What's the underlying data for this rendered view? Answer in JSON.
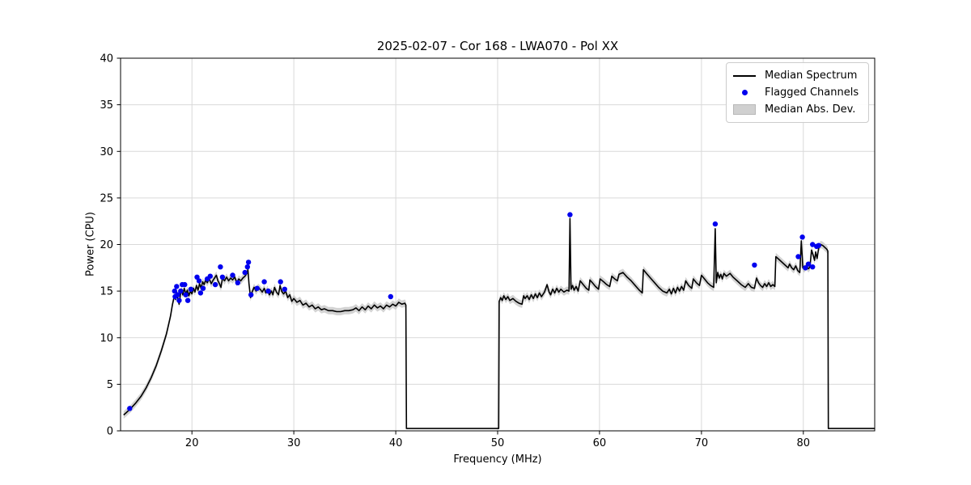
{
  "chart_data": {
    "type": "line",
    "title": "2025-02-07 - Cor 168 - LWA070 - Pol XX",
    "xlabel": "Frequency (MHz)",
    "ylabel": "Power (CPU)",
    "xlim": [
      13,
      87
    ],
    "ylim": [
      0,
      40
    ],
    "xticks": [
      20,
      30,
      40,
      50,
      60,
      70,
      80
    ],
    "yticks": [
      0,
      5,
      10,
      15,
      20,
      25,
      30,
      35,
      40
    ],
    "grid": true,
    "colors": {
      "line": "#000000",
      "flagged": "#0000ee",
      "band": "#c8c8c8",
      "grid": "#d9d9d9",
      "spine": "#000000"
    },
    "legend": {
      "position": "upper-right",
      "entries": [
        {
          "label": "Median Spectrum",
          "marker": "line"
        },
        {
          "label": "Flagged Channels",
          "marker": "dot"
        },
        {
          "label": "Median Abs. Dev.",
          "marker": "patch"
        }
      ]
    },
    "series": [
      {
        "name": "Median Spectrum",
        "type": "line",
        "points": [
          [
            13.3,
            1.7
          ],
          [
            13.6,
            2.0
          ],
          [
            14.0,
            2.4
          ],
          [
            14.5,
            3.0
          ],
          [
            15.0,
            3.7
          ],
          [
            15.5,
            4.6
          ],
          [
            16.0,
            5.7
          ],
          [
            16.5,
            7.0
          ],
          [
            17.0,
            8.6
          ],
          [
            17.5,
            10.4
          ],
          [
            17.9,
            12.3
          ],
          [
            18.1,
            13.6
          ],
          [
            18.3,
            14.6
          ],
          [
            18.4,
            14.1
          ],
          [
            18.5,
            14.9
          ],
          [
            18.6,
            14.3
          ],
          [
            18.75,
            13.6
          ],
          [
            18.9,
            14.8
          ],
          [
            19.0,
            15.2
          ],
          [
            19.1,
            14.6
          ],
          [
            19.25,
            15.3
          ],
          [
            19.4,
            14.7
          ],
          [
            19.55,
            15.1
          ],
          [
            19.7,
            14.5
          ],
          [
            19.85,
            15.0
          ],
          [
            20.0,
            14.7
          ],
          [
            20.15,
            15.3
          ],
          [
            20.3,
            14.9
          ],
          [
            20.45,
            15.6
          ],
          [
            20.6,
            15.1
          ],
          [
            20.75,
            15.8
          ],
          [
            20.9,
            15.3
          ],
          [
            21.05,
            16.0
          ],
          [
            21.2,
            15.7
          ],
          [
            21.35,
            16.2
          ],
          [
            21.5,
            15.9
          ],
          [
            21.7,
            16.3
          ],
          [
            21.9,
            15.8
          ],
          [
            22.1,
            16.2
          ],
          [
            22.4,
            16.7
          ],
          [
            22.55,
            16.1
          ],
          [
            22.7,
            15.8
          ],
          [
            22.85,
            15.4
          ],
          [
            23.0,
            16.4
          ],
          [
            23.2,
            16.1
          ],
          [
            23.4,
            16.5
          ],
          [
            23.6,
            16.1
          ],
          [
            23.8,
            16.4
          ],
          [
            24.0,
            16.2
          ],
          [
            24.2,
            16.5
          ],
          [
            24.4,
            15.9
          ],
          [
            24.6,
            16.3
          ],
          [
            24.8,
            16.1
          ],
          [
            25.0,
            16.4
          ],
          [
            25.2,
            16.6
          ],
          [
            25.4,
            16.9
          ],
          [
            25.5,
            17.3
          ],
          [
            25.6,
            15.8
          ],
          [
            25.75,
            14.3
          ],
          [
            25.9,
            14.9
          ],
          [
            26.1,
            15.4
          ],
          [
            26.3,
            15.0
          ],
          [
            26.5,
            15.4
          ],
          [
            26.7,
            15.2
          ],
          [
            26.9,
            14.9
          ],
          [
            27.1,
            15.3
          ],
          [
            27.25,
            14.8
          ],
          [
            27.4,
            15.2
          ],
          [
            27.6,
            14.6
          ],
          [
            27.8,
            15.0
          ],
          [
            27.95,
            14.6
          ],
          [
            28.1,
            15.4
          ],
          [
            28.3,
            14.9
          ],
          [
            28.5,
            14.6
          ],
          [
            28.65,
            15.6
          ],
          [
            28.8,
            15.0
          ],
          [
            29.0,
            14.7
          ],
          [
            29.2,
            15.0
          ],
          [
            29.4,
            14.3
          ],
          [
            29.6,
            14.6
          ],
          [
            29.8,
            13.9
          ],
          [
            30.0,
            14.2
          ],
          [
            30.3,
            13.8
          ],
          [
            30.6,
            14.0
          ],
          [
            30.9,
            13.5
          ],
          [
            31.2,
            13.7
          ],
          [
            31.5,
            13.3
          ],
          [
            31.8,
            13.5
          ],
          [
            32.1,
            13.1
          ],
          [
            32.4,
            13.3
          ],
          [
            32.7,
            13.0
          ],
          [
            33.0,
            13.1
          ],
          [
            33.4,
            12.9
          ],
          [
            33.8,
            12.9
          ],
          [
            34.2,
            12.8
          ],
          [
            34.6,
            12.8
          ],
          [
            35.0,
            12.9
          ],
          [
            35.4,
            12.9
          ],
          [
            35.8,
            13.0
          ],
          [
            36.1,
            13.2
          ],
          [
            36.4,
            12.9
          ],
          [
            36.7,
            13.3
          ],
          [
            37.0,
            13.0
          ],
          [
            37.3,
            13.4
          ],
          [
            37.6,
            13.1
          ],
          [
            37.9,
            13.5
          ],
          [
            38.2,
            13.2
          ],
          [
            38.5,
            13.4
          ],
          [
            38.8,
            13.1
          ],
          [
            39.1,
            13.5
          ],
          [
            39.4,
            13.3
          ],
          [
            39.7,
            13.6
          ],
          [
            40.0,
            13.4
          ],
          [
            40.3,
            13.8
          ],
          [
            40.6,
            13.6
          ],
          [
            40.9,
            13.7
          ],
          [
            41.0,
            13.5
          ],
          [
            41.05,
            0.25
          ],
          [
            50.1,
            0.25
          ],
          [
            50.15,
            13.9
          ],
          [
            50.3,
            14.3
          ],
          [
            50.45,
            14.0
          ],
          [
            50.6,
            14.5
          ],
          [
            50.8,
            14.1
          ],
          [
            51.0,
            14.4
          ],
          [
            51.2,
            14.0
          ],
          [
            51.5,
            14.2
          ],
          [
            51.8,
            13.9
          ],
          [
            52.1,
            13.7
          ],
          [
            52.4,
            13.6
          ],
          [
            52.55,
            14.5
          ],
          [
            52.7,
            14.2
          ],
          [
            52.9,
            14.5
          ],
          [
            53.1,
            14.1
          ],
          [
            53.3,
            14.6
          ],
          [
            53.5,
            14.2
          ],
          [
            53.7,
            14.7
          ],
          [
            53.9,
            14.3
          ],
          [
            54.1,
            14.8
          ],
          [
            54.3,
            14.4
          ],
          [
            54.6,
            14.9
          ],
          [
            54.85,
            15.7
          ],
          [
            55.05,
            14.9
          ],
          [
            55.2,
            14.6
          ],
          [
            55.4,
            15.2
          ],
          [
            55.6,
            14.8
          ],
          [
            55.8,
            15.3
          ],
          [
            56.0,
            14.9
          ],
          [
            56.2,
            15.2
          ],
          [
            56.5,
            14.9
          ],
          [
            56.8,
            15.1
          ],
          [
            57.0,
            15.0
          ],
          [
            57.1,
            22.8
          ],
          [
            57.2,
            15.2
          ],
          [
            57.35,
            15.6
          ],
          [
            57.5,
            15.1
          ],
          [
            57.7,
            15.5
          ],
          [
            57.9,
            15.0
          ],
          [
            58.1,
            16.1
          ],
          [
            58.4,
            15.7
          ],
          [
            58.7,
            15.3
          ],
          [
            58.95,
            15.1
          ],
          [
            59.05,
            16.2
          ],
          [
            59.3,
            15.9
          ],
          [
            59.6,
            15.5
          ],
          [
            59.9,
            15.2
          ],
          [
            60.05,
            16.3
          ],
          [
            60.4,
            16.0
          ],
          [
            60.7,
            15.7
          ],
          [
            61.0,
            15.5
          ],
          [
            61.2,
            16.6
          ],
          [
            61.5,
            16.3
          ],
          [
            61.75,
            16.1
          ],
          [
            61.9,
            16.8
          ],
          [
            62.3,
            17.0
          ],
          [
            62.7,
            16.5
          ],
          [
            63.1,
            16.1
          ],
          [
            63.5,
            15.6
          ],
          [
            63.9,
            15.1
          ],
          [
            64.2,
            14.8
          ],
          [
            64.3,
            17.3
          ],
          [
            64.6,
            16.9
          ],
          [
            65.0,
            16.4
          ],
          [
            65.4,
            15.9
          ],
          [
            65.8,
            15.4
          ],
          [
            66.2,
            15.0
          ],
          [
            66.6,
            14.8
          ],
          [
            66.85,
            15.2
          ],
          [
            67.05,
            14.7
          ],
          [
            67.25,
            15.3
          ],
          [
            67.45,
            14.8
          ],
          [
            67.65,
            15.4
          ],
          [
            67.85,
            15.0
          ],
          [
            68.05,
            15.5
          ],
          [
            68.25,
            15.1
          ],
          [
            68.45,
            16.1
          ],
          [
            68.75,
            15.6
          ],
          [
            69.05,
            15.3
          ],
          [
            69.2,
            16.3
          ],
          [
            69.5,
            15.9
          ],
          [
            69.8,
            15.6
          ],
          [
            70.0,
            16.7
          ],
          [
            70.3,
            16.3
          ],
          [
            70.6,
            15.9
          ],
          [
            70.9,
            15.6
          ],
          [
            71.2,
            15.4
          ],
          [
            71.35,
            21.7
          ],
          [
            71.45,
            15.9
          ],
          [
            71.6,
            17.0
          ],
          [
            71.75,
            16.4
          ],
          [
            71.9,
            16.8
          ],
          [
            72.05,
            16.3
          ],
          [
            72.2,
            16.9
          ],
          [
            72.45,
            16.6
          ],
          [
            72.8,
            16.9
          ],
          [
            73.1,
            16.5
          ],
          [
            73.5,
            16.1
          ],
          [
            73.9,
            15.7
          ],
          [
            74.3,
            15.4
          ],
          [
            74.6,
            15.8
          ],
          [
            74.9,
            15.4
          ],
          [
            75.2,
            15.3
          ],
          [
            75.4,
            16.4
          ],
          [
            75.6,
            15.9
          ],
          [
            75.8,
            15.6
          ],
          [
            76.0,
            15.4
          ],
          [
            76.2,
            15.8
          ],
          [
            76.4,
            15.5
          ],
          [
            76.6,
            15.9
          ],
          [
            76.8,
            15.5
          ],
          [
            77.0,
            15.7
          ],
          [
            77.2,
            15.5
          ],
          [
            77.3,
            18.7
          ],
          [
            77.6,
            18.4
          ],
          [
            77.9,
            18.1
          ],
          [
            78.2,
            17.8
          ],
          [
            78.5,
            17.5
          ],
          [
            78.65,
            17.9
          ],
          [
            78.85,
            17.5
          ],
          [
            79.05,
            17.3
          ],
          [
            79.25,
            17.7
          ],
          [
            79.45,
            17.2
          ],
          [
            79.65,
            17.0
          ],
          [
            79.8,
            20.4
          ],
          [
            79.95,
            17.5
          ],
          [
            80.1,
            17.4
          ],
          [
            80.3,
            17.7
          ],
          [
            80.5,
            17.4
          ],
          [
            80.65,
            17.6
          ],
          [
            80.8,
            19.4
          ],
          [
            80.95,
            18.9
          ],
          [
            81.1,
            18.3
          ],
          [
            81.2,
            19.2
          ],
          [
            81.35,
            18.5
          ],
          [
            81.5,
            19.6
          ],
          [
            81.7,
            20.0
          ],
          [
            81.9,
            19.9
          ],
          [
            82.1,
            19.7
          ],
          [
            82.3,
            19.5
          ],
          [
            82.4,
            19.3
          ],
          [
            82.45,
            0.25
          ],
          [
            87.0,
            0.25
          ]
        ]
      },
      {
        "name": "Flagged Channels",
        "type": "scatter",
        "points": [
          [
            13.9,
            2.4
          ],
          [
            18.3,
            15.0
          ],
          [
            18.35,
            14.4
          ],
          [
            18.5,
            15.5
          ],
          [
            18.6,
            14.6
          ],
          [
            18.75,
            14.0
          ],
          [
            18.9,
            15.0
          ],
          [
            19.05,
            15.7
          ],
          [
            19.3,
            15.7
          ],
          [
            19.4,
            14.6
          ],
          [
            19.6,
            14.0
          ],
          [
            19.9,
            15.2
          ],
          [
            20.5,
            16.5
          ],
          [
            20.7,
            16.1
          ],
          [
            20.85,
            14.8
          ],
          [
            21.1,
            15.3
          ],
          [
            21.5,
            16.3
          ],
          [
            21.8,
            16.6
          ],
          [
            22.3,
            15.7
          ],
          [
            22.8,
            17.6
          ],
          [
            23.0,
            16.5
          ],
          [
            24.0,
            16.7
          ],
          [
            24.5,
            15.9
          ],
          [
            25.2,
            17.0
          ],
          [
            25.45,
            17.6
          ],
          [
            25.55,
            18.1
          ],
          [
            25.8,
            14.6
          ],
          [
            26.4,
            15.3
          ],
          [
            27.1,
            16.0
          ],
          [
            27.5,
            15.0
          ],
          [
            28.7,
            16.0
          ],
          [
            29.1,
            15.2
          ],
          [
            39.5,
            14.4
          ],
          [
            57.1,
            23.2
          ],
          [
            71.35,
            22.2
          ],
          [
            75.2,
            17.8
          ],
          [
            79.5,
            18.7
          ],
          [
            79.9,
            20.8
          ],
          [
            80.2,
            17.5
          ],
          [
            80.5,
            17.9
          ],
          [
            80.9,
            17.6
          ],
          [
            80.9,
            20.0
          ],
          [
            81.3,
            19.8
          ],
          [
            81.5,
            19.9
          ]
        ]
      },
      {
        "name": "Median Abs. Dev.",
        "type": "band",
        "source": "Median Spectrum",
        "half_width": 0.4
      }
    ]
  }
}
